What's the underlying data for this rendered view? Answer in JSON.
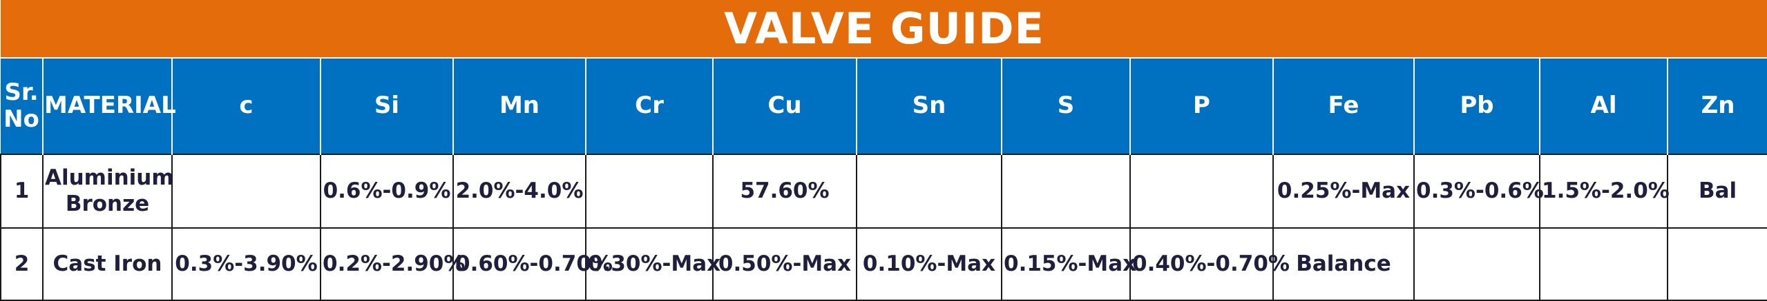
{
  "title": "VALVE GUIDE",
  "colors": {
    "title_bg": "#E46C0A",
    "header_bg": "#0070C0",
    "text_dark": "#1F1F3D"
  },
  "headers": [
    "Sr. No",
    "MATERIAL",
    "c",
    "Si",
    "Mn",
    "Cr",
    "Cu",
    "Sn",
    "S",
    "P",
    "Fe",
    "Pb",
    "Al",
    "Zn"
  ],
  "rows": [
    [
      "1",
      "Aluminium Bronze",
      "",
      "0.6%-0.9%",
      "2.0%-4.0%",
      "",
      "57.60%",
      "",
      "",
      "",
      "0.25%-Max",
      "0.3%-0.6%",
      "1.5%-2.0%",
      "Bal"
    ],
    [
      "2",
      "Cast Iron",
      "0.3%-3.90%",
      "0.2%-2.90%",
      "0.60%-0.70%",
      "0.30%-Max",
      "0.50%-Max",
      "0.10%-Max",
      "0.15%-Max",
      "0.40%-0.70%",
      "Balance",
      "",
      "",
      ""
    ]
  ]
}
